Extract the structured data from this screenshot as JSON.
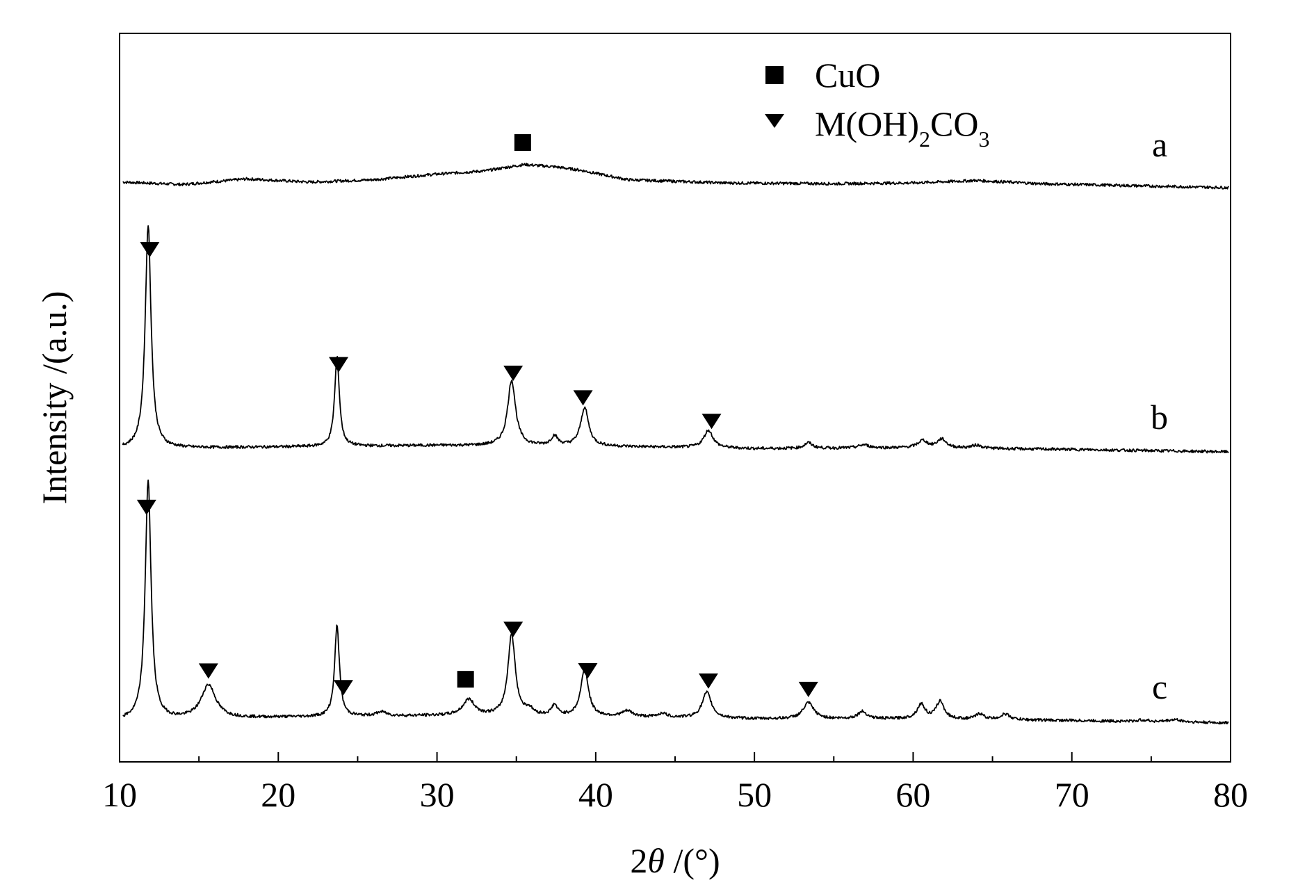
{
  "chart_data": {
    "type": "line",
    "xlabel_prefix": "2",
    "xlabel_theta": "θ",
    "xlabel_suffix": " /(°)",
    "ylabel": "Intensity /(a.u.)",
    "xlim": [
      10,
      80
    ],
    "xticks": [
      10,
      20,
      30,
      40,
      50,
      60,
      70,
      80
    ],
    "xtick_labels": [
      "10",
      "20",
      "30",
      "40",
      "50",
      "60",
      "70",
      "80"
    ],
    "yticks_shown": false,
    "grid": false,
    "legend_position": "top-center",
    "legend": [
      {
        "marker": "square",
        "label": "CuO"
      },
      {
        "marker": "triangle-down",
        "label_main": "M(OH)",
        "label_sub1": "2",
        "label_mid": "CO",
        "label_sub2": "3"
      }
    ],
    "series": [
      {
        "name": "a",
        "baseline": [
          [
            10.2,
            0.07
          ],
          [
            14,
            0.04
          ],
          [
            18,
            0.11
          ],
          [
            22,
            0.07
          ],
          [
            26,
            0.1
          ],
          [
            30,
            0.17
          ],
          [
            33,
            0.21
          ],
          [
            35.5,
            0.29
          ],
          [
            37.5,
            0.26
          ],
          [
            39,
            0.22
          ],
          [
            42,
            0.1
          ],
          [
            48,
            0.06
          ],
          [
            55,
            0.05
          ],
          [
            60,
            0.06
          ],
          [
            64,
            0.09
          ],
          [
            68,
            0.05
          ],
          [
            75,
            0.02
          ],
          [
            80,
            0.0
          ]
        ],
        "peaks": [],
        "markers": [
          {
            "x": 35.4,
            "type": "square"
          }
        ]
      },
      {
        "name": "b",
        "baseline": [
          [
            10.2,
            0.04
          ],
          [
            20,
            0.06
          ],
          [
            30,
            0.08
          ],
          [
            40,
            0.07
          ],
          [
            50,
            0.04
          ],
          [
            60,
            0.05
          ],
          [
            70,
            0.03
          ],
          [
            80,
            0.0
          ]
        ],
        "peaks": [
          [
            11.8,
            2.8,
            0.22
          ],
          [
            23.7,
            1.12,
            0.18
          ],
          [
            34.7,
            0.82,
            0.3
          ],
          [
            37.4,
            0.12,
            0.25
          ],
          [
            39.3,
            0.48,
            0.3
          ],
          [
            47.1,
            0.22,
            0.35
          ],
          [
            53.4,
            0.07,
            0.3
          ],
          [
            56.9,
            0.04,
            0.4
          ],
          [
            60.6,
            0.09,
            0.35
          ],
          [
            61.8,
            0.11,
            0.35
          ],
          [
            64.0,
            0.04,
            0.4
          ]
        ],
        "markers": [
          {
            "x": 11.9,
            "type": "triangle"
          },
          {
            "x": 23.8,
            "type": "triangle"
          },
          {
            "x": 34.8,
            "type": "triangle"
          },
          {
            "x": 39.2,
            "type": "triangle"
          },
          {
            "x": 47.3,
            "type": "triangle"
          }
        ]
      },
      {
        "name": "c",
        "baseline": [
          [
            10.2,
            0.03
          ],
          [
            20,
            0.07
          ],
          [
            30,
            0.09
          ],
          [
            40,
            0.08
          ],
          [
            50,
            0.05
          ],
          [
            60,
            0.05
          ],
          [
            70,
            0.03
          ],
          [
            80,
            0.0
          ]
        ],
        "peaks": [
          [
            11.8,
            3.0,
            0.22
          ],
          [
            15.6,
            0.42,
            0.55
          ],
          [
            23.7,
            1.14,
            0.18
          ],
          [
            26.5,
            0.05,
            0.4
          ],
          [
            32.0,
            0.2,
            0.45
          ],
          [
            34.7,
            1.02,
            0.28
          ],
          [
            35.8,
            0.07,
            0.3
          ],
          [
            37.4,
            0.13,
            0.22
          ],
          [
            39.3,
            0.6,
            0.28
          ],
          [
            42.0,
            0.07,
            0.4
          ],
          [
            44.2,
            0.05,
            0.3
          ],
          [
            47.0,
            0.32,
            0.35
          ],
          [
            53.4,
            0.2,
            0.4
          ],
          [
            56.8,
            0.09,
            0.35
          ],
          [
            60.5,
            0.18,
            0.3
          ],
          [
            61.7,
            0.22,
            0.3
          ],
          [
            64.2,
            0.07,
            0.3
          ],
          [
            65.8,
            0.07,
            0.35
          ],
          [
            74.5,
            0.02,
            0.4
          ],
          [
            76.5,
            0.03,
            0.5
          ]
        ],
        "markers": [
          {
            "x": 11.7,
            "type": "triangle"
          },
          {
            "x": 15.6,
            "type": "triangle"
          },
          {
            "x": 24.1,
            "type": "triangle"
          },
          {
            "x": 31.8,
            "type": "square"
          },
          {
            "x": 34.8,
            "type": "triangle"
          },
          {
            "x": 39.5,
            "type": "triangle"
          },
          {
            "x": 47.1,
            "type": "triangle"
          },
          {
            "x": 53.4,
            "type": "triangle"
          }
        ]
      }
    ]
  }
}
